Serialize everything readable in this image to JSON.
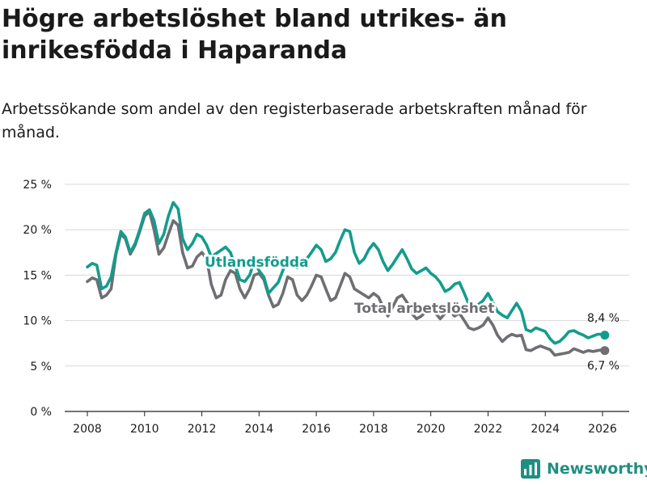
{
  "title": "Högre arbetslöshet bland utrikes- än inrikesfödda i Haparanda",
  "subtitle": "Arbetssökande som andel av den registerbaserade arbetskraften månad för månad.",
  "brand": "Newsworthy",
  "colors": {
    "foreign": "#139c8d",
    "total": "#6e6e73",
    "axis": "#222222",
    "grid": "#d9d9d9",
    "text": "#1a1a1a"
  },
  "chart_data": {
    "type": "line",
    "ylim": [
      0,
      25
    ],
    "y_ticks": [
      0,
      5,
      10,
      15,
      20,
      25
    ],
    "y_tick_labels": [
      "0 %",
      "5 %",
      "10 %",
      "15 %",
      "20 %",
      "25 %"
    ],
    "xlim": [
      2007.6,
      2026.9
    ],
    "x_ticks": [
      2008,
      2010,
      2012,
      2014,
      2016,
      2018,
      2020,
      2022,
      2024,
      2026
    ],
    "x_tick_labels": [
      "2008",
      "2010",
      "2012",
      "2014",
      "2016",
      "2018",
      "2020",
      "2022",
      "2024",
      "2026"
    ],
    "series": [
      {
        "name": "Utlandsfödda",
        "label": "Utlandsfödda",
        "end_label": "8,4 %",
        "points": [
          [
            2008.0,
            15.9
          ],
          [
            2008.17,
            16.3
          ],
          [
            2008.33,
            16.1
          ],
          [
            2008.5,
            13.5
          ],
          [
            2008.67,
            13.8
          ],
          [
            2008.83,
            14.8
          ],
          [
            2009.0,
            17.5
          ],
          [
            2009.17,
            19.8
          ],
          [
            2009.33,
            19.2
          ],
          [
            2009.5,
            17.5
          ],
          [
            2009.67,
            18.5
          ],
          [
            2009.83,
            20.0
          ],
          [
            2010.0,
            21.8
          ],
          [
            2010.17,
            22.2
          ],
          [
            2010.33,
            21.0
          ],
          [
            2010.5,
            18.5
          ],
          [
            2010.67,
            19.5
          ],
          [
            2010.83,
            21.5
          ],
          [
            2011.0,
            23.0
          ],
          [
            2011.17,
            22.3
          ],
          [
            2011.33,
            19.0
          ],
          [
            2011.5,
            17.8
          ],
          [
            2011.67,
            18.5
          ],
          [
            2011.83,
            19.5
          ],
          [
            2012.0,
            19.2
          ],
          [
            2012.17,
            18.3
          ],
          [
            2012.33,
            17.0
          ],
          [
            2012.83,
            18.1
          ],
          [
            2013.0,
            17.5
          ],
          [
            2013.17,
            16.0
          ],
          [
            2013.33,
            14.5
          ],
          [
            2013.5,
            14.3
          ],
          [
            2013.67,
            15.0
          ],
          [
            2013.83,
            16.5
          ],
          [
            2014.0,
            15.5
          ],
          [
            2014.17,
            14.8
          ],
          [
            2014.33,
            13.0
          ],
          [
            2014.5,
            13.6
          ],
          [
            2014.67,
            14.2
          ],
          [
            2014.83,
            15.5
          ],
          [
            2015.0,
            17.0
          ],
          [
            2015.17,
            16.5
          ],
          [
            2015.33,
            15.8
          ],
          [
            2015.5,
            16.0
          ],
          [
            2015.67,
            16.8
          ],
          [
            2015.83,
            17.5
          ],
          [
            2016.0,
            18.3
          ],
          [
            2016.17,
            17.8
          ],
          [
            2016.33,
            16.5
          ],
          [
            2016.5,
            16.8
          ],
          [
            2016.67,
            17.5
          ],
          [
            2016.83,
            18.8
          ],
          [
            2017.0,
            20.0
          ],
          [
            2017.17,
            19.8
          ],
          [
            2017.33,
            17.5
          ],
          [
            2017.5,
            16.3
          ],
          [
            2017.67,
            16.8
          ],
          [
            2017.83,
            17.8
          ],
          [
            2018.0,
            18.5
          ],
          [
            2018.17,
            17.8
          ],
          [
            2018.33,
            16.5
          ],
          [
            2018.5,
            15.5
          ],
          [
            2018.67,
            16.2
          ],
          [
            2018.83,
            17.0
          ],
          [
            2019.0,
            17.8
          ],
          [
            2019.17,
            16.8
          ],
          [
            2019.33,
            15.7
          ],
          [
            2019.5,
            15.2
          ],
          [
            2019.67,
            15.5
          ],
          [
            2019.83,
            15.8
          ],
          [
            2020.0,
            15.2
          ],
          [
            2020.17,
            14.8
          ],
          [
            2020.33,
            14.2
          ],
          [
            2020.5,
            13.2
          ],
          [
            2020.67,
            13.5
          ],
          [
            2020.83,
            14.0
          ],
          [
            2021.0,
            14.2
          ],
          [
            2021.17,
            13.0
          ],
          [
            2021.33,
            11.8
          ],
          [
            2021.5,
            11.5
          ],
          [
            2021.67,
            11.8
          ],
          [
            2021.83,
            12.2
          ],
          [
            2022.0,
            13.0
          ],
          [
            2022.17,
            12.0
          ],
          [
            2022.33,
            11.0
          ],
          [
            2022.5,
            10.6
          ],
          [
            2022.67,
            10.3
          ],
          [
            2023.0,
            11.9
          ],
          [
            2023.17,
            11.0
          ],
          [
            2023.33,
            9.0
          ],
          [
            2023.5,
            8.8
          ],
          [
            2023.67,
            9.2
          ],
          [
            2023.83,
            9.0
          ],
          [
            2024.0,
            8.8
          ],
          [
            2024.17,
            8.0
          ],
          [
            2024.33,
            7.5
          ],
          [
            2024.5,
            7.7
          ],
          [
            2024.67,
            8.2
          ],
          [
            2024.83,
            8.8
          ],
          [
            2025.0,
            8.9
          ],
          [
            2025.17,
            8.6
          ],
          [
            2025.33,
            8.4
          ],
          [
            2025.5,
            8.1
          ],
          [
            2025.67,
            8.3
          ],
          [
            2025.83,
            8.5
          ],
          [
            2026.0,
            8.5
          ],
          [
            2026.08,
            8.4
          ]
        ]
      },
      {
        "name": "Total arbetslöshet",
        "label": "Total arbetslöshet",
        "end_label": "6,7 %",
        "points": [
          [
            2008.0,
            14.3
          ],
          [
            2008.17,
            14.7
          ],
          [
            2008.33,
            14.5
          ],
          [
            2008.5,
            12.5
          ],
          [
            2008.67,
            12.8
          ],
          [
            2008.83,
            13.5
          ],
          [
            2009.0,
            17.3
          ],
          [
            2009.17,
            19.5
          ],
          [
            2009.33,
            19.0
          ],
          [
            2009.5,
            17.3
          ],
          [
            2009.67,
            18.3
          ],
          [
            2009.83,
            19.8
          ],
          [
            2010.0,
            21.5
          ],
          [
            2010.17,
            22.0
          ],
          [
            2010.33,
            20.0
          ],
          [
            2010.5,
            17.3
          ],
          [
            2010.67,
            18.0
          ],
          [
            2010.83,
            19.5
          ],
          [
            2011.0,
            21.0
          ],
          [
            2011.17,
            20.5
          ],
          [
            2011.33,
            17.5
          ],
          [
            2011.5,
            15.8
          ],
          [
            2011.67,
            16.0
          ],
          [
            2011.83,
            17.0
          ],
          [
            2012.0,
            17.5
          ],
          [
            2012.17,
            16.8
          ],
          [
            2012.33,
            14.0
          ],
          [
            2012.5,
            12.5
          ],
          [
            2012.67,
            12.8
          ],
          [
            2012.83,
            14.5
          ],
          [
            2013.0,
            15.5
          ],
          [
            2013.17,
            15.2
          ],
          [
            2013.33,
            13.5
          ],
          [
            2013.5,
            12.5
          ],
          [
            2013.67,
            13.5
          ],
          [
            2013.83,
            15.0
          ],
          [
            2014.0,
            15.2
          ],
          [
            2014.17,
            14.5
          ],
          [
            2014.33,
            12.8
          ],
          [
            2014.5,
            11.5
          ],
          [
            2014.67,
            11.8
          ],
          [
            2014.83,
            13.0
          ],
          [
            2015.0,
            14.8
          ],
          [
            2015.17,
            14.5
          ],
          [
            2015.33,
            12.8
          ],
          [
            2015.5,
            12.2
          ],
          [
            2015.67,
            12.8
          ],
          [
            2015.83,
            13.8
          ],
          [
            2016.0,
            15.0
          ],
          [
            2016.17,
            14.8
          ],
          [
            2016.33,
            13.5
          ],
          [
            2016.5,
            12.2
          ],
          [
            2016.67,
            12.5
          ],
          [
            2016.83,
            13.8
          ],
          [
            2017.0,
            15.2
          ],
          [
            2017.17,
            14.8
          ],
          [
            2017.33,
            13.5
          ],
          [
            2017.83,
            12.5
          ],
          [
            2018.0,
            13.0
          ],
          [
            2018.17,
            12.6
          ],
          [
            2018.33,
            11.5
          ],
          [
            2018.5,
            10.5
          ],
          [
            2018.67,
            11.5
          ],
          [
            2018.83,
            12.5
          ],
          [
            2019.0,
            12.8
          ],
          [
            2019.17,
            12.0
          ],
          [
            2019.33,
            10.8
          ],
          [
            2019.5,
            10.2
          ],
          [
            2019.67,
            10.5
          ],
          [
            2019.83,
            11.0
          ],
          [
            2020.0,
            11.2
          ],
          [
            2020.17,
            10.8
          ],
          [
            2020.33,
            10.2
          ],
          [
            2020.5,
            10.8
          ],
          [
            2020.67,
            11.0
          ],
          [
            2020.83,
            10.5
          ],
          [
            2021.0,
            10.8
          ],
          [
            2021.17,
            10.0
          ],
          [
            2021.33,
            9.2
          ],
          [
            2021.5,
            9.0
          ],
          [
            2021.67,
            9.2
          ],
          [
            2021.83,
            9.5
          ],
          [
            2022.0,
            10.3
          ],
          [
            2022.17,
            9.5
          ],
          [
            2022.33,
            8.4
          ],
          [
            2022.5,
            7.7
          ],
          [
            2022.67,
            8.2
          ],
          [
            2022.83,
            8.5
          ],
          [
            2023.0,
            8.3
          ],
          [
            2023.17,
            8.4
          ],
          [
            2023.33,
            6.8
          ],
          [
            2023.5,
            6.7
          ],
          [
            2023.67,
            7.0
          ],
          [
            2023.83,
            7.2
          ],
          [
            2024.0,
            7.0
          ],
          [
            2024.17,
            6.8
          ],
          [
            2024.33,
            6.2
          ],
          [
            2024.5,
            6.3
          ],
          [
            2024.67,
            6.4
          ],
          [
            2024.83,
            6.5
          ],
          [
            2025.0,
            6.9
          ],
          [
            2025.17,
            6.7
          ],
          [
            2025.33,
            6.5
          ],
          [
            2025.5,
            6.7
          ],
          [
            2025.67,
            6.6
          ],
          [
            2025.83,
            6.7
          ],
          [
            2026.0,
            6.8
          ],
          [
            2026.08,
            6.7
          ]
        ]
      }
    ]
  }
}
